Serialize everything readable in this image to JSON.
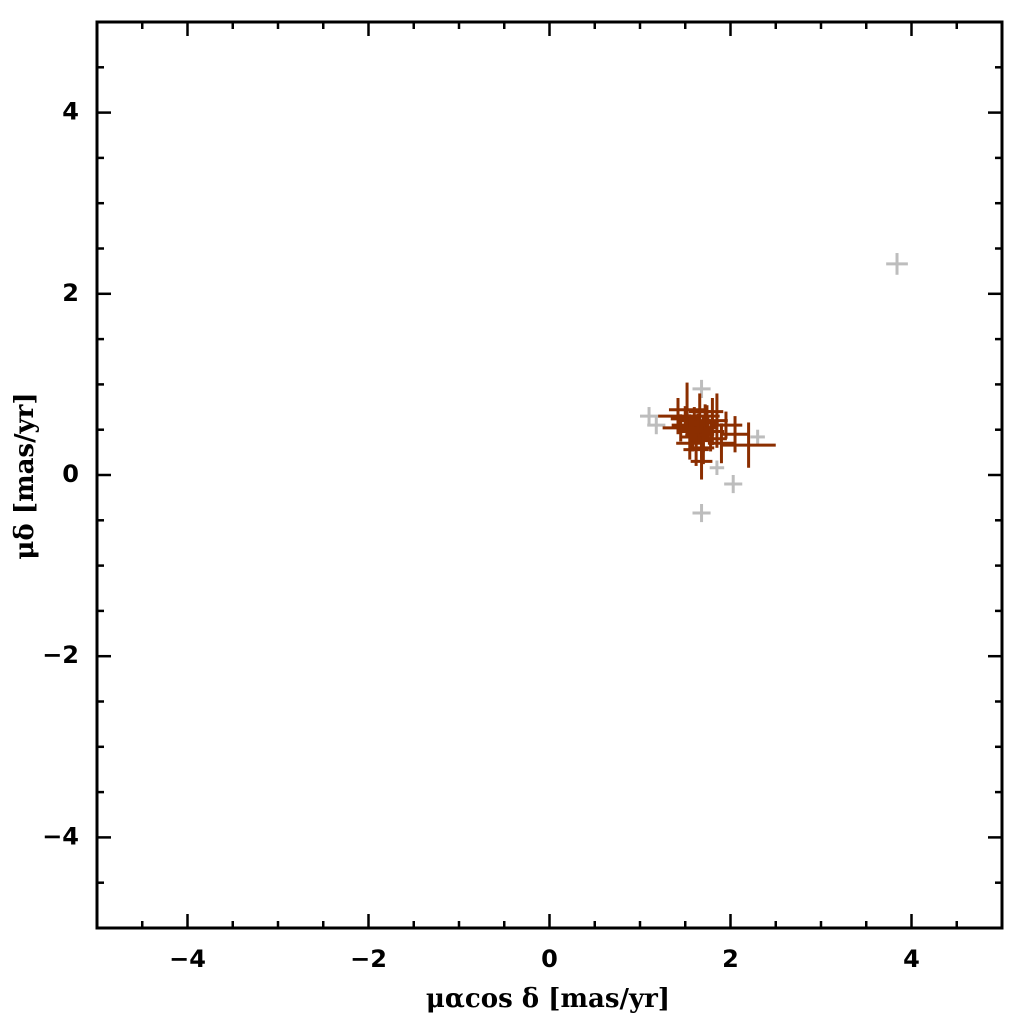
{
  "chart_data": {
    "type": "errorscatter",
    "x_label": "μαcos δ [mas/yr]",
    "y_label": "μδ [mas/yr]",
    "xlim": [
      -5,
      5
    ],
    "ylim": [
      -5,
      5
    ],
    "xticks": [
      {
        "value": -4,
        "label": "−4"
      },
      {
        "value": -2,
        "label": "−2"
      },
      0,
      2,
      4
    ],
    "yticks": [
      {
        "value": -4,
        "label": "−4"
      },
      {
        "value": -2,
        "label": "−2"
      },
      0,
      2,
      4
    ],
    "xminorticks": [
      -4.5,
      -3.5,
      -3,
      -2.5,
      -1.5,
      -1,
      -0.5,
      0.5,
      1,
      1.5,
      2.5,
      3,
      3.5,
      4.5
    ],
    "yminorticks": [
      -4.5,
      -3.5,
      -3,
      -2.5,
      -1.5,
      -1,
      -0.5,
      0.5,
      1,
      1.5,
      2.5,
      3,
      3.5,
      4.5
    ],
    "series": [
      {
        "color": "#bdbdbd",
        "x": [
          3.84,
          1.1,
          1.18,
          1.68,
          1.68,
          2.03,
          1.85,
          2.3
        ],
        "values": [
          2.33,
          0.65,
          0.55,
          0.95,
          -0.42,
          -0.1,
          0.08,
          0.42
        ],
        "xerr": [
          0.12,
          0.1,
          0.1,
          0.1,
          0.1,
          0.1,
          0.08,
          0.08
        ],
        "yerr": [
          0.12,
          0.1,
          0.1,
          0.1,
          0.1,
          0.1,
          0.08,
          0.08
        ]
      },
      {
        "color": "#8b2e00",
        "x": [
          1.65,
          1.55,
          1.7,
          1.6,
          1.75,
          1.58,
          1.68,
          1.62,
          1.72,
          1.5,
          1.8,
          1.66,
          1.55,
          1.78,
          1.45,
          1.7,
          1.6,
          1.64,
          1.52,
          1.85,
          2.2,
          2.05,
          1.95,
          1.42,
          1.68,
          1.9,
          1.74,
          1.58,
          1.62,
          1.8
        ],
        "values": [
          0.5,
          0.55,
          0.45,
          0.6,
          0.52,
          0.42,
          0.38,
          0.48,
          0.58,
          0.62,
          0.48,
          0.7,
          0.35,
          0.4,
          0.52,
          0.3,
          0.44,
          0.56,
          0.72,
          0.6,
          0.33,
          0.45,
          0.55,
          0.65,
          0.15,
          0.35,
          0.65,
          0.5,
          0.28,
          0.7
        ],
        "xerr": [
          0.15,
          0.2,
          0.12,
          0.18,
          0.1,
          0.14,
          0.12,
          0.2,
          0.15,
          0.16,
          0.13,
          0.12,
          0.15,
          0.18,
          0.2,
          0.12,
          0.1,
          0.1,
          0.2,
          0.12,
          0.3,
          0.15,
          0.18,
          0.22,
          0.12,
          0.15,
          0.14,
          0.12,
          0.14,
          0.12
        ],
        "yerr": [
          0.15,
          0.12,
          0.2,
          0.15,
          0.12,
          0.16,
          0.2,
          0.18,
          0.2,
          0.14,
          0.15,
          0.2,
          0.18,
          0.14,
          0.15,
          0.18,
          0.1,
          0.12,
          0.3,
          0.3,
          0.25,
          0.2,
          0.15,
          0.2,
          0.2,
          0.22,
          0.12,
          0.12,
          0.18,
          0.15
        ]
      }
    ]
  }
}
